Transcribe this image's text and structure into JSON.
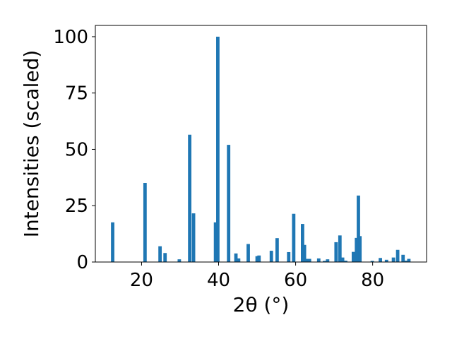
{
  "chart_data": {
    "type": "bar",
    "title": "",
    "xlabel": "2θ (°)",
    "ylabel": "Intensities (scaled)",
    "xlim": [
      8,
      94
    ],
    "ylim": [
      0,
      105
    ],
    "xticks": [
      20,
      40,
      60,
      80
    ],
    "yticks": [
      0,
      25,
      50,
      75,
      100
    ],
    "grid": false,
    "bar_color": "#1f77b4",
    "x": [
      12.5,
      20.9,
      24.8,
      26.1,
      29.8,
      32.5,
      33.5,
      39.2,
      39.8,
      42.6,
      44.5,
      45.2,
      47.7,
      50.0,
      50.5,
      53.7,
      55.2,
      58.2,
      59.5,
      61.8,
      62.3,
      62.8,
      63.6,
      66.0,
      67.5,
      68.3,
      70.5,
      71.5,
      72.2,
      73.0,
      75.0,
      75.8,
      76.3,
      76.7,
      79.9,
      82.0,
      83.6,
      85.4,
      86.5,
      87.9,
      88.7,
      89.4
    ],
    "values": [
      17.6,
      35.1,
      7.0,
      4.0,
      1.2,
      56.5,
      21.6,
      17.6,
      100.0,
      52.0,
      3.8,
      1.6,
      8.0,
      2.6,
      2.9,
      5.0,
      10.6,
      4.4,
      21.4,
      16.9,
      7.6,
      1.4,
      1.4,
      1.6,
      0.5,
      1.2,
      8.8,
      11.8,
      2.0,
      0.6,
      4.5,
      10.7,
      29.5,
      11.5,
      0.5,
      1.8,
      1.0,
      2.0,
      5.4,
      3.2,
      0.6,
      1.4
    ]
  }
}
